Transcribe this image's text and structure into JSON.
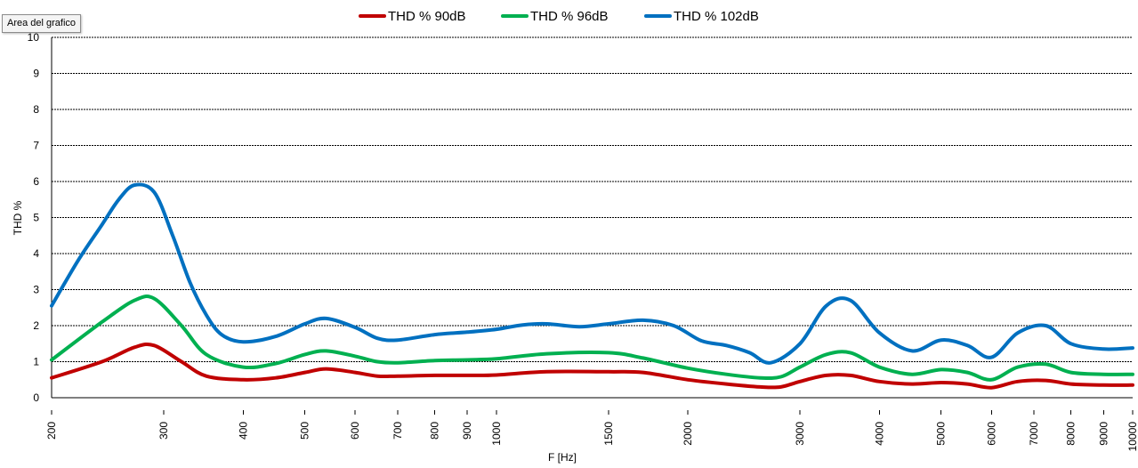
{
  "tooltip": {
    "text": "Area del grafico"
  },
  "chart_data": {
    "type": "line",
    "xlabel": "F [Hz]",
    "ylabel": "THD  %",
    "x_scale": "log",
    "xlim": [
      200,
      10000
    ],
    "ylim": [
      0,
      10
    ],
    "y_ticks": [
      0,
      1,
      2,
      3,
      4,
      5,
      6,
      7,
      8,
      9,
      10
    ],
    "x_ticks": [
      200,
      300,
      400,
      500,
      600,
      700,
      800,
      900,
      1000,
      1500,
      2000,
      3000,
      4000,
      5000,
      6000,
      7000,
      8000,
      9000,
      10000
    ],
    "grid": "horizontal",
    "legend_position": "top-center",
    "series": [
      {
        "name": "THD % 90dB",
        "color": "#c00000",
        "x": [
          200,
          240,
          270,
          290,
          320,
          350,
          400,
          450,
          500,
          540,
          600,
          650,
          700,
          800,
          900,
          1000,
          1200,
          1500,
          1700,
          2000,
          2300,
          2600,
          2800,
          3000,
          3300,
          3600,
          4000,
          4500,
          5000,
          5500,
          6000,
          6600,
          7300,
          8000,
          9000,
          10000
        ],
        "values": [
          0.55,
          1.0,
          1.4,
          1.45,
          1.0,
          0.6,
          0.5,
          0.55,
          0.7,
          0.8,
          0.7,
          0.6,
          0.6,
          0.62,
          0.62,
          0.63,
          0.72,
          0.72,
          0.7,
          0.5,
          0.38,
          0.3,
          0.3,
          0.45,
          0.62,
          0.62,
          0.45,
          0.38,
          0.42,
          0.38,
          0.28,
          0.45,
          0.48,
          0.38,
          0.35,
          0.35
        ]
      },
      {
        "name": "THD % 96dB",
        "color": "#00b050",
        "x": [
          200,
          240,
          270,
          290,
          320,
          350,
          400,
          450,
          500,
          540,
          600,
          650,
          700,
          800,
          900,
          1000,
          1200,
          1500,
          1700,
          2000,
          2300,
          2600,
          2800,
          3000,
          3300,
          3600,
          4000,
          4500,
          5000,
          5500,
          6000,
          6600,
          7300,
          8000,
          9000,
          10000
        ],
        "values": [
          1.05,
          2.1,
          2.7,
          2.75,
          2.0,
          1.2,
          0.85,
          0.95,
          1.2,
          1.3,
          1.15,
          1.0,
          0.97,
          1.03,
          1.05,
          1.08,
          1.22,
          1.25,
          1.1,
          0.82,
          0.65,
          0.55,
          0.58,
          0.85,
          1.2,
          1.25,
          0.85,
          0.65,
          0.78,
          0.7,
          0.5,
          0.85,
          0.93,
          0.7,
          0.65,
          0.65
        ]
      },
      {
        "name": "THD % 102dB",
        "color": "#0070c0",
        "x": [
          200,
          220,
          240,
          255,
          270,
          290,
          310,
          330,
          350,
          370,
          400,
          450,
          500,
          540,
          600,
          650,
          700,
          800,
          900,
          1000,
          1100,
          1200,
          1350,
          1500,
          1700,
          1900,
          2100,
          2300,
          2500,
          2700,
          3000,
          3300,
          3600,
          4000,
          4500,
          5000,
          5500,
          6000,
          6600,
          7300,
          8000,
          9000,
          10000
        ],
        "values": [
          2.55,
          3.8,
          4.8,
          5.5,
          5.9,
          5.7,
          4.5,
          3.2,
          2.3,
          1.75,
          1.55,
          1.7,
          2.05,
          2.2,
          1.95,
          1.65,
          1.6,
          1.75,
          1.82,
          1.9,
          2.02,
          2.05,
          1.97,
          2.05,
          2.15,
          2.0,
          1.58,
          1.45,
          1.25,
          0.97,
          1.5,
          2.55,
          2.7,
          1.8,
          1.3,
          1.6,
          1.45,
          1.12,
          1.8,
          2.0,
          1.5,
          1.35,
          1.38
        ]
      }
    ]
  }
}
